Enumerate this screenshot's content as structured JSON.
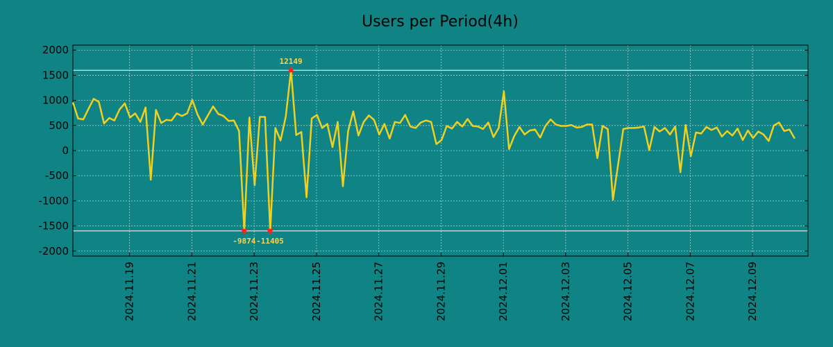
{
  "chart_data": {
    "type": "line",
    "title": "Users per Period(4h)",
    "xlabel": "",
    "ylabel": "",
    "ylim": [
      -2100,
      2100
    ],
    "yticks": [
      2000,
      1500,
      1000,
      500,
      0,
      -500,
      -1000,
      -1500,
      -2000
    ],
    "ytick_labels": [
      "2000",
      "1500",
      "1000",
      "500",
      "0",
      "-500",
      "-1000",
      "-1500",
      "-2000"
    ],
    "xlim": [
      0,
      23.6
    ],
    "xticks": [
      1.82,
      3.82,
      5.82,
      7.82,
      9.82,
      11.82,
      13.82,
      15.82,
      17.82,
      19.82,
      21.82
    ],
    "xtick_labels": [
      "2024.11.19",
      "2024.11.21",
      "2024.11.23",
      "2024.11.25",
      "2024.11.27",
      "2024.11.29",
      "2024.12.01",
      "2024.12.03",
      "2024.12.05",
      "2024.12.07",
      "2024.12.09"
    ],
    "grid": true,
    "clip_lines": [
      1600,
      -1600
    ],
    "colors": {
      "background": "#108484",
      "line": "#f0d020",
      "marker": "#ff2020",
      "annotation": "#ffd24a",
      "grid": "#9fcfcf"
    },
    "series": [
      {
        "name": "users",
        "step_days": 0.1667,
        "values": [
          960,
          640,
          620,
          830,
          1030,
          970,
          540,
          650,
          600,
          820,
          940,
          660,
          740,
          570,
          860,
          -580,
          810,
          550,
          610,
          600,
          740,
          690,
          740,
          1010,
          720,
          520,
          700,
          880,
          730,
          690,
          590,
          600,
          390,
          -1600,
          660,
          -690,
          670,
          670,
          -1600,
          450,
          200,
          680,
          1600,
          310,
          370,
          -930,
          640,
          710,
          450,
          530,
          70,
          570,
          -710,
          390,
          780,
          300,
          570,
          700,
          610,
          320,
          530,
          240,
          570,
          550,
          710,
          480,
          450,
          560,
          600,
          570,
          130,
          210,
          490,
          440,
          570,
          480,
          630,
          490,
          480,
          430,
          560,
          270,
          450,
          1180,
          30,
          290,
          470,
          320,
          400,
          420,
          260,
          490,
          620,
          520,
          490,
          490,
          510,
          460,
          470,
          520,
          520,
          -150,
          490,
          430,
          -980,
          -280,
          430,
          450,
          450,
          460,
          480,
          10,
          470,
          380,
          450,
          320,
          480,
          -430,
          510,
          -110,
          360,
          340,
          470,
          410,
          460,
          280,
          390,
          300,
          440,
          210,
          400,
          250,
          380,
          320,
          190,
          500,
          560,
          390,
          420,
          240
        ]
      }
    ],
    "annotations": [
      {
        "label": "12149",
        "x": 7.0,
        "y": 1600
      },
      {
        "label": "-9874",
        "x": 5.5,
        "y": -1600
      },
      {
        "label": "-11405",
        "x": 6.33,
        "y": -1600
      }
    ]
  }
}
